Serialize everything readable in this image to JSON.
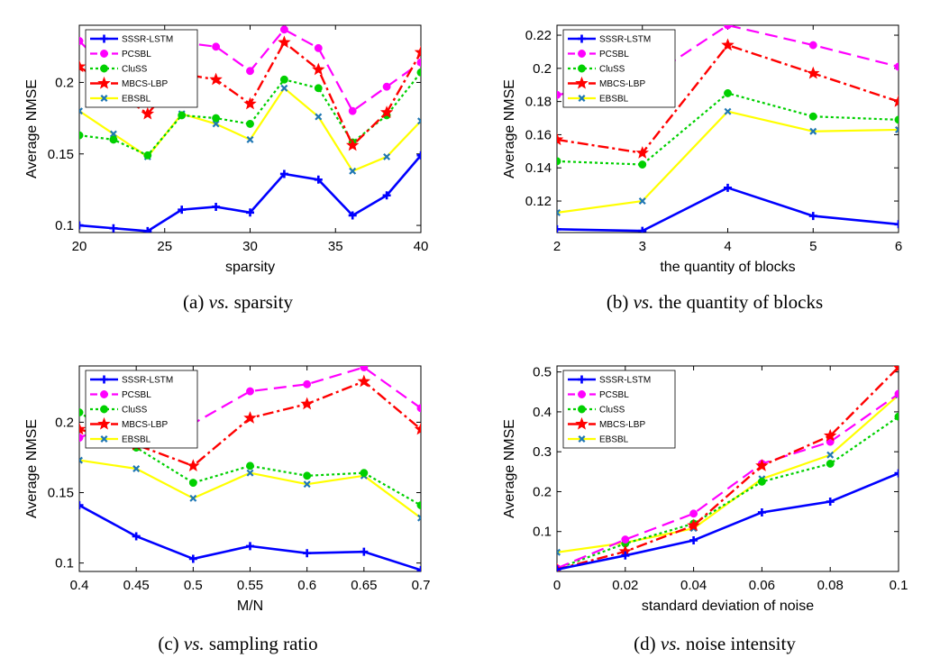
{
  "colors": {
    "SSSR-LSTM": "#0000ff",
    "PCSBL": "#ff00ff",
    "CluSS": "#00d000",
    "MBCS-LBP": "#ff0000",
    "EBSBL": "#ffff00",
    "EBSBL_marker": "#1f77b4"
  },
  "legend_entries": [
    "SSSR-LSTM",
    "PCSBL",
    "CluSS",
    "MBCS-LBP",
    "EBSBL"
  ],
  "chart_data": [
    {
      "type": "line",
      "caption_prefix": "(a)",
      "caption_vs": "vs.",
      "caption_text": "sparsity",
      "xlabel": "sparsity",
      "ylabel": "Average NMSE",
      "x": [
        20,
        22,
        24,
        26,
        28,
        30,
        32,
        34,
        36,
        38,
        40
      ],
      "xlim": [
        20,
        40
      ],
      "ylim": [
        0.095,
        0.24
      ],
      "xticks": [
        20,
        25,
        30,
        35,
        40
      ],
      "xtick_labels": [
        "20",
        "25",
        "30",
        "35",
        "40"
      ],
      "yticks": [
        0.1,
        0.15,
        0.2
      ],
      "ytick_labels": [
        "0.1",
        "0.15",
        "0.2"
      ],
      "legend": "top-left",
      "series": [
        {
          "name": "SSSR-LSTM",
          "values": [
            0.1,
            0.098,
            0.096,
            0.111,
            0.113,
            0.109,
            0.136,
            0.132,
            0.107,
            0.121,
            0.149
          ]
        },
        {
          "name": "PCSBL",
          "values": [
            0.229,
            0.205,
            0.19,
            0.228,
            0.225,
            0.208,
            0.237,
            0.224,
            0.18,
            0.197,
            0.214
          ]
        },
        {
          "name": "CluSS",
          "values": [
            0.163,
            0.16,
            0.149,
            0.177,
            0.175,
            0.171,
            0.202,
            0.196,
            0.158,
            0.177,
            0.207
          ]
        },
        {
          "name": "MBCS-LBP",
          "values": [
            0.211,
            0.195,
            0.178,
            0.206,
            0.202,
            0.185,
            0.228,
            0.209,
            0.156,
            0.179,
            0.221
          ]
        },
        {
          "name": "EBSBL",
          "values": [
            0.18,
            0.164,
            0.148,
            0.178,
            0.171,
            0.16,
            0.196,
            0.176,
            0.138,
            0.148,
            0.173
          ]
        }
      ]
    },
    {
      "type": "line",
      "caption_prefix": "(b)",
      "caption_vs": "vs.",
      "caption_text": "the quantity of blocks",
      "xlabel": "the quantity of blocks",
      "ylabel": "Average NMSE",
      "x": [
        2,
        3,
        4,
        5,
        6
      ],
      "xlim": [
        2,
        6
      ],
      "ylim": [
        0.101,
        0.226
      ],
      "xticks": [
        2,
        3,
        4,
        5,
        6
      ],
      "xtick_labels": [
        "2",
        "3",
        "4",
        "5",
        "6"
      ],
      "yticks": [
        0.12,
        0.14,
        0.16,
        0.18,
        0.2,
        0.22
      ],
      "ytick_labels": [
        "0.12",
        "0.14",
        "0.16",
        "0.18",
        "0.2",
        "0.22"
      ],
      "legend": "top-left",
      "series": [
        {
          "name": "SSSR-LSTM",
          "values": [
            0.103,
            0.102,
            0.128,
            0.111,
            0.106
          ]
        },
        {
          "name": "PCSBL",
          "values": [
            0.184,
            0.192,
            0.226,
            0.214,
            0.201
          ]
        },
        {
          "name": "CluSS",
          "values": [
            0.144,
            0.142,
            0.185,
            0.171,
            0.169
          ]
        },
        {
          "name": "MBCS-LBP",
          "values": [
            0.157,
            0.149,
            0.214,
            0.197,
            0.18
          ]
        },
        {
          "name": "EBSBL",
          "values": [
            0.113,
            0.12,
            0.174,
            0.162,
            0.163
          ]
        }
      ]
    },
    {
      "type": "line",
      "caption_prefix": "(c)",
      "caption_vs": "vs.",
      "caption_text": "sampling ratio",
      "xlabel": "M/N",
      "ylabel": "Average NMSE",
      "x": [
        0.4,
        0.45,
        0.5,
        0.55,
        0.6,
        0.65,
        0.7
      ],
      "xlim": [
        0.4,
        0.7
      ],
      "ylim": [
        0.094,
        0.24
      ],
      "xticks": [
        0.4,
        0.45,
        0.5,
        0.55,
        0.6,
        0.65,
        0.7
      ],
      "xtick_labels": [
        "0.4",
        "0.45",
        "0.5",
        "0.55",
        "0.6",
        "0.65",
        "0.7"
      ],
      "yticks": [
        0.1,
        0.15,
        0.2
      ],
      "ytick_labels": [
        "0.1",
        "0.15",
        "0.2"
      ],
      "legend": "top-left",
      "series": [
        {
          "name": "SSSR-LSTM",
          "values": [
            0.141,
            0.119,
            0.103,
            0.112,
            0.107,
            0.108,
            0.095
          ]
        },
        {
          "name": "PCSBL",
          "values": [
            0.189,
            0.205,
            0.199,
            0.222,
            0.227,
            0.239,
            0.21
          ]
        },
        {
          "name": "CluSS",
          "values": [
            0.207,
            0.182,
            0.157,
            0.169,
            0.162,
            0.164,
            0.141
          ]
        },
        {
          "name": "MBCS-LBP",
          "values": [
            0.195,
            0.184,
            0.169,
            0.203,
            0.213,
            0.229,
            0.195
          ]
        },
        {
          "name": "EBSBL",
          "values": [
            0.173,
            0.167,
            0.146,
            0.164,
            0.156,
            0.162,
            0.132
          ]
        }
      ]
    },
    {
      "type": "line",
      "caption_prefix": "(d)",
      "caption_vs": "vs.",
      "caption_text": "noise intensity",
      "xlabel": "standard deviation of noise",
      "ylabel": "Average NMSE",
      "x": [
        0,
        0.02,
        0.04,
        0.06,
        0.08,
        0.1
      ],
      "xlim": [
        0,
        0.1
      ],
      "ylim": [
        0,
        0.515
      ],
      "xticks": [
        0,
        0.02,
        0.04,
        0.06,
        0.08,
        0.1
      ],
      "xtick_labels": [
        "0",
        "0.02",
        "0.04",
        "0.06",
        "0.08",
        "0.1"
      ],
      "yticks": [
        0.1,
        0.2,
        0.3,
        0.4,
        0.5
      ],
      "ytick_labels": [
        "0.1",
        "0.2",
        "0.3",
        "0.4",
        "0.5"
      ],
      "legend": "top-left",
      "series": [
        {
          "name": "SSSR-LSTM",
          "values": [
            0.005,
            0.04,
            0.078,
            0.148,
            0.175,
            0.246
          ]
        },
        {
          "name": "PCSBL",
          "values": [
            0.008,
            0.08,
            0.145,
            0.27,
            0.325,
            0.445
          ]
        },
        {
          "name": "CluSS",
          "values": [
            0.007,
            0.07,
            0.12,
            0.225,
            0.27,
            0.388
          ]
        },
        {
          "name": "MBCS-LBP",
          "values": [
            0.005,
            0.05,
            0.115,
            0.265,
            0.34,
            0.512
          ]
        },
        {
          "name": "EBSBL",
          "values": [
            0.048,
            0.072,
            0.108,
            0.232,
            0.292,
            0.442
          ]
        }
      ]
    }
  ]
}
